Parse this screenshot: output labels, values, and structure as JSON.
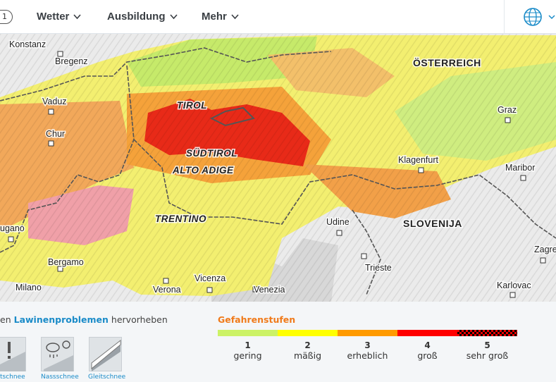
{
  "nav": {
    "badge": "1",
    "items": [
      "Wetter",
      "Ausbildung",
      "Mehr"
    ]
  },
  "map": {
    "regions": [
      "ÖSTERREICH",
      "SLOVENIJA",
      "TIROL",
      "SÜDTIROL",
      "ALTO ADIGE",
      "TRENTINO"
    ],
    "places": [
      "Konstanz",
      "Bregenz",
      "Vaduz",
      "Chur",
      "ugano",
      "Bergamo",
      "Milano",
      "Verona",
      "Vicenza",
      "Venezia",
      "Udine",
      "Trieste",
      "Klagenfurt",
      "Graz",
      "Maribor",
      "Zagre",
      "Karlovac"
    ]
  },
  "problems": {
    "lead": "en",
    "highlight": "Lawinenproblemen",
    "trail": "hervorheben",
    "items": [
      "tschnee",
      "Nassschnee",
      "Gleitschnee"
    ]
  },
  "legend": {
    "title": "Gefahrenstufen",
    "levels": [
      {
        "number": 1,
        "label": "gering"
      },
      {
        "number": 2,
        "label": "mäßig"
      },
      {
        "number": 3,
        "label": "erheblich"
      },
      {
        "number": 4,
        "label": "groß"
      },
      {
        "number": 5,
        "label": "sehr groß"
      }
    ]
  }
}
